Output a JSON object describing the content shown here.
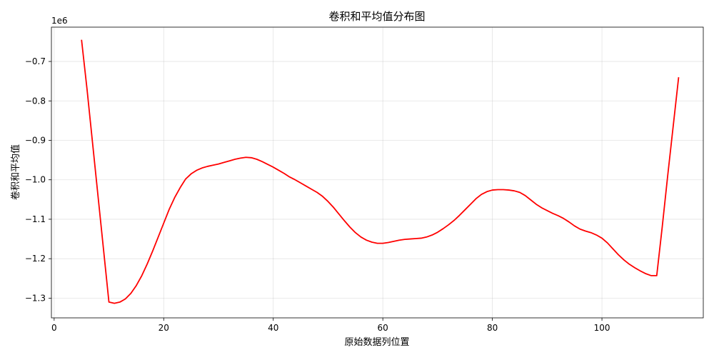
{
  "chart_data": {
    "type": "line",
    "title": "卷积和平均值分布图",
    "xlabel": "原始数据列位置",
    "ylabel": "卷积和平均值",
    "offset_label": "1e6",
    "xlim": [
      -0.5,
      118.5
    ],
    "ylim": [
      -1.35,
      -0.613
    ],
    "xticks": [
      0,
      20,
      40,
      60,
      80,
      100
    ],
    "xtick_labels": [
      "0",
      "20",
      "40",
      "60",
      "80",
      "100"
    ],
    "yticks": [
      -1.3,
      -1.2,
      -1.1,
      -1.0,
      -0.9,
      -0.8,
      -0.7
    ],
    "ytick_labels": [
      "−1.3",
      "−1.2",
      "−1.1",
      "−1.0",
      "−0.9",
      "−0.8",
      "−0.7"
    ],
    "grid": true,
    "series": [
      {
        "color": "#ff0000",
        "x": [
          5,
          6,
          7,
          8,
          9,
          10,
          11,
          12,
          13,
          14,
          15,
          16,
          17,
          18,
          19,
          20,
          21,
          22,
          23,
          24,
          25,
          26,
          27,
          28,
          29,
          30,
          31,
          32,
          33,
          34,
          35,
          36,
          37,
          38,
          39,
          40,
          41,
          42,
          43,
          44,
          45,
          46,
          47,
          48,
          49,
          50,
          51,
          52,
          53,
          54,
          55,
          56,
          57,
          58,
          59,
          60,
          61,
          62,
          63,
          64,
          65,
          66,
          67,
          68,
          69,
          70,
          71,
          72,
          73,
          74,
          75,
          76,
          77,
          78,
          79,
          80,
          81,
          82,
          83,
          84,
          85,
          86,
          87,
          88,
          89,
          90,
          91,
          92,
          93,
          94,
          95,
          96,
          97,
          98,
          99,
          100,
          101,
          102,
          103,
          104,
          105,
          106,
          107,
          108,
          109,
          110,
          111,
          112,
          113,
          114
        ],
        "values": [
          -0.645,
          -0.77,
          -0.905,
          -1.04,
          -1.175,
          -1.31,
          -1.313,
          -1.31,
          -1.302,
          -1.288,
          -1.268,
          -1.243,
          -1.213,
          -1.18,
          -1.145,
          -1.11,
          -1.075,
          -1.045,
          -1.02,
          -0.998,
          -0.985,
          -0.976,
          -0.97,
          -0.966,
          -0.963,
          -0.96,
          -0.956,
          -0.952,
          -0.948,
          -0.945,
          -0.943,
          -0.944,
          -0.948,
          -0.954,
          -0.961,
          -0.968,
          -0.976,
          -0.984,
          -0.993,
          -1.0,
          -1.008,
          -1.016,
          -1.024,
          -1.032,
          -1.042,
          -1.055,
          -1.07,
          -1.087,
          -1.104,
          -1.12,
          -1.134,
          -1.145,
          -1.153,
          -1.158,
          -1.161,
          -1.161,
          -1.159,
          -1.156,
          -1.153,
          -1.151,
          -1.15,
          -1.149,
          -1.148,
          -1.145,
          -1.14,
          -1.133,
          -1.124,
          -1.114,
          -1.103,
          -1.09,
          -1.076,
          -1.062,
          -1.048,
          -1.037,
          -1.03,
          -1.026,
          -1.025,
          -1.025,
          -1.026,
          -1.028,
          -1.032,
          -1.04,
          -1.051,
          -1.062,
          -1.071,
          -1.078,
          -1.085,
          -1.091,
          -1.098,
          -1.107,
          -1.117,
          -1.125,
          -1.13,
          -1.134,
          -1.14,
          -1.148,
          -1.16,
          -1.175,
          -1.19,
          -1.203,
          -1.214,
          -1.223,
          -1.231,
          -1.238,
          -1.243,
          -1.243,
          -1.12,
          -0.99,
          -0.865,
          -0.74
        ]
      }
    ]
  }
}
